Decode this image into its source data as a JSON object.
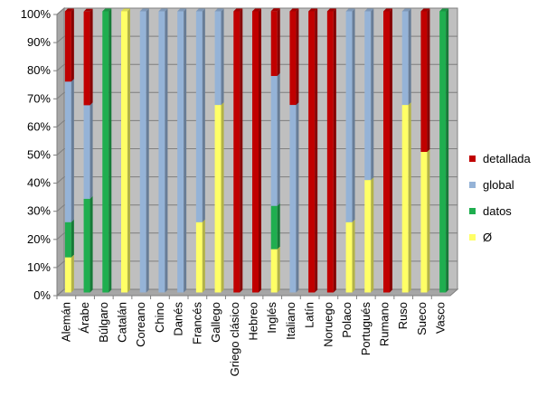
{
  "chart_data": {
    "type": "bar",
    "stacked": "percent",
    "categories": [
      "Alemán",
      "Árabe",
      "Búlgaro",
      "Catalán",
      "Coreano",
      "Chino",
      "Danés",
      "Francés",
      "Gallego",
      "Griego clásico",
      "Hebreo",
      "Inglés",
      "Italiano",
      "Latín",
      "Noruego",
      "Polaco",
      "Portugués",
      "Rumano",
      "Ruso",
      "Sueco",
      "Vasco"
    ],
    "series": [
      {
        "name": "Ø",
        "color": "#ffff66",
        "values": [
          12.5,
          0,
          0,
          100,
          0,
          0,
          0,
          25,
          66.7,
          0,
          0,
          15.4,
          0,
          0,
          0,
          25,
          40,
          0,
          66.7,
          50,
          0
        ]
      },
      {
        "name": "datos",
        "color": "#1fae4f",
        "values": [
          12.5,
          33.3,
          100,
          0,
          0,
          0,
          0,
          0,
          0,
          0,
          0,
          15.4,
          0,
          0,
          0,
          0,
          0,
          0,
          0,
          0,
          100
        ]
      },
      {
        "name": "global",
        "color": "#95b3d7",
        "values": [
          50,
          33.3,
          0,
          0,
          100,
          100,
          100,
          75,
          33.3,
          0,
          0,
          46.2,
          66.7,
          0,
          0,
          75,
          60,
          0,
          33.3,
          0,
          0
        ]
      },
      {
        "name": "detallada",
        "color": "#c00000",
        "values": [
          25,
          33.3,
          0,
          0,
          0,
          0,
          0,
          0,
          0,
          100,
          100,
          23.1,
          33.3,
          100,
          100,
          0,
          0,
          100,
          0,
          50,
          0
        ]
      }
    ],
    "legend_order": [
      "detallada",
      "global",
      "datos",
      "Ø"
    ],
    "legend_position": "right",
    "ylim": [
      0,
      100
    ],
    "yticks": [
      "0%",
      "10%",
      "20%",
      "30%",
      "40%",
      "50%",
      "60%",
      "70%",
      "80%",
      "90%",
      "100%"
    ],
    "grid": true,
    "plot_background": "#bfbfbf"
  }
}
